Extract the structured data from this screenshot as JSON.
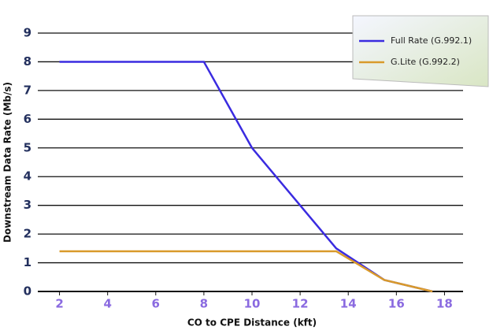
{
  "chart_data": {
    "type": "line",
    "xlabel": "CO to CPE Distance (kft)",
    "ylabel": "Downstream Data Rate (Mb/s)",
    "series": [
      {
        "name": "Full Rate (G.992.1)",
        "color": "#3a2be0",
        "x": [
          2,
          8,
          10,
          12,
          13.5,
          15.5,
          17.5
        ],
        "values": [
          8,
          8,
          5,
          3,
          1.5,
          0.4,
          0
        ]
      },
      {
        "name": "G.Lite (G.992.2)",
        "color": "#d99a2b",
        "x": [
          2,
          13.5,
          15.5,
          17.5
        ],
        "values": [
          1.4,
          1.4,
          0.4,
          0
        ]
      }
    ],
    "xlim": [
      1,
      19
    ],
    "xticks": [
      2,
      4,
      6,
      8,
      10,
      12,
      14,
      16,
      18
    ],
    "ylim": [
      0,
      9
    ],
    "yticks": [
      0,
      1,
      2,
      3,
      4,
      5,
      6,
      7,
      8,
      9
    ],
    "grid": true,
    "legend": "upper right"
  }
}
